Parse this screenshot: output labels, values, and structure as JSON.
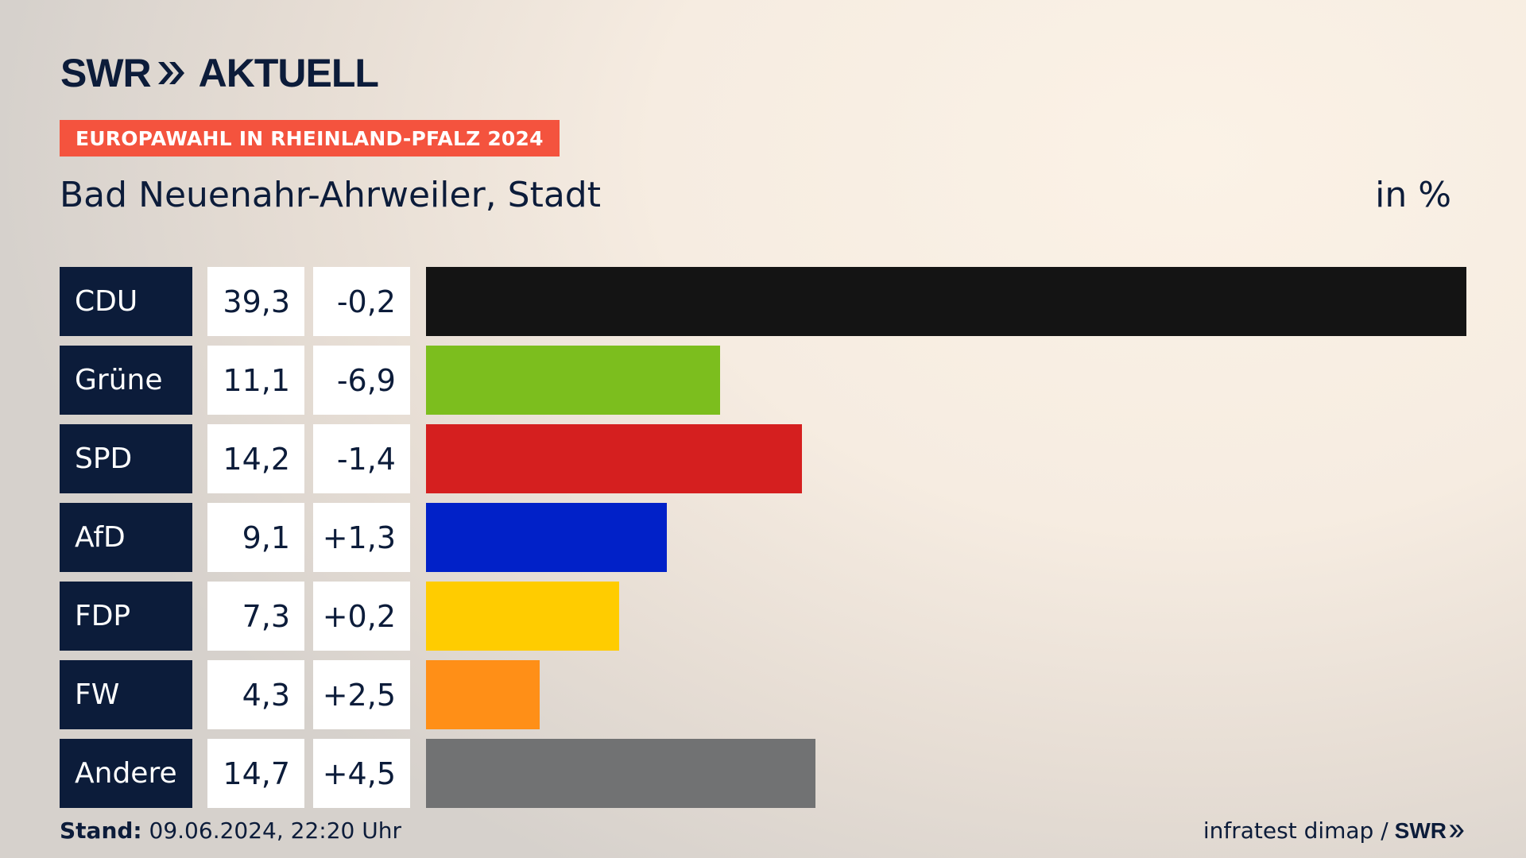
{
  "header": {
    "logo_left": "SWR",
    "logo_right": "AKTUELL",
    "badge": "EUROPAWAHL IN RHEINLAND-PFALZ 2024",
    "place": "Bad Neuenahr-Ahrweiler, Stadt",
    "unit": "in %"
  },
  "chart_data": {
    "type": "bar",
    "orientation": "horizontal",
    "unit": "in %",
    "title": "Bad Neuenahr-Ahrweiler, Stadt",
    "categories": [
      "CDU",
      "Grüne",
      "SPD",
      "AfD",
      "FDP",
      "FW",
      "Andere"
    ],
    "values": [
      39.3,
      11.1,
      14.2,
      9.1,
      7.3,
      4.3,
      14.7
    ],
    "value_labels": [
      "39,3",
      "11,1",
      "14,2",
      "9,1",
      "7,3",
      "4,3",
      "14,7"
    ],
    "changes": [
      -0.2,
      -6.9,
      -1.4,
      1.3,
      0.2,
      2.5,
      4.5
    ],
    "change_labels": [
      "-0,2",
      "-6,9",
      "-1,4",
      "+1,3",
      "+0,2",
      "+2,5",
      "+4,5"
    ],
    "colors": [
      "#141414",
      "#7cbe1e",
      "#d51f1f",
      "#0121c8",
      "#ffcc00",
      "#ff8f17",
      "#717273"
    ],
    "xlim": [
      0,
      39.3
    ]
  },
  "footer": {
    "stand_label": "Stand:",
    "stand_value": "09.06.2024, 22:20 Uhr",
    "source": "infratest dimap /",
    "source_logo": "SWR"
  }
}
